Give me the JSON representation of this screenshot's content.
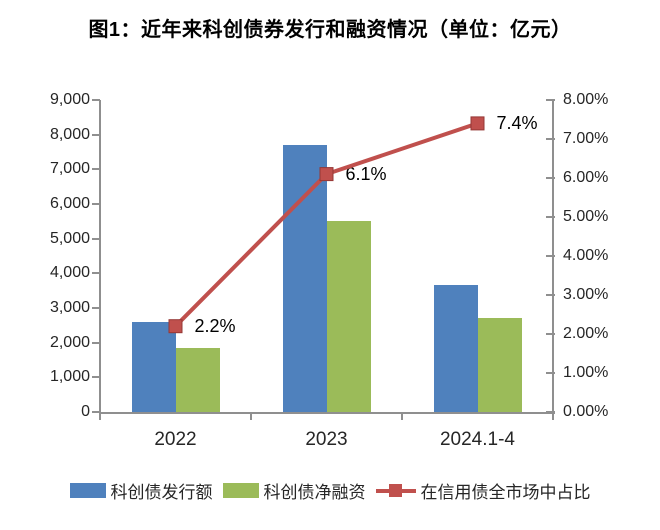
{
  "chart_data": {
    "type": "bar+line",
    "title": "图1：近年来科创债券发行和融资情况（单位：亿元）",
    "categories": [
      "2022",
      "2023",
      "2024.1-4"
    ],
    "series": [
      {
        "key": "issuance",
        "name": "科创债发行额",
        "type": "bar",
        "axis": "left",
        "color": "#4F81BD",
        "values": [
          2600,
          7700,
          3650
        ]
      },
      {
        "key": "net-financing",
        "name": "科创债净融资",
        "type": "bar",
        "axis": "left",
        "color": "#9BBB59",
        "values": [
          1850,
          5500,
          2700
        ]
      },
      {
        "key": "credit-market-share",
        "name": "在信用债全市场中占比",
        "type": "line",
        "axis": "right",
        "color": "#C0504D",
        "values": [
          2.2,
          6.1,
          7.4
        ],
        "labels": [
          "2.2%",
          "6.1%",
          "7.4%"
        ]
      }
    ],
    "left_axis": {
      "min": 0,
      "max": 9000,
      "step": 1000,
      "ticks": [
        "0",
        "1,000",
        "2,000",
        "3,000",
        "4,000",
        "5,000",
        "6,000",
        "7,000",
        "8,000",
        "9,000"
      ]
    },
    "right_axis": {
      "min": 0,
      "max": 8,
      "step": 1,
      "ticks": [
        "0.00%",
        "1.00%",
        "2.00%",
        "3.00%",
        "4.00%",
        "5.00%",
        "6.00%",
        "7.00%",
        "8.00%"
      ]
    },
    "legend_position": "bottom",
    "grid": false
  }
}
